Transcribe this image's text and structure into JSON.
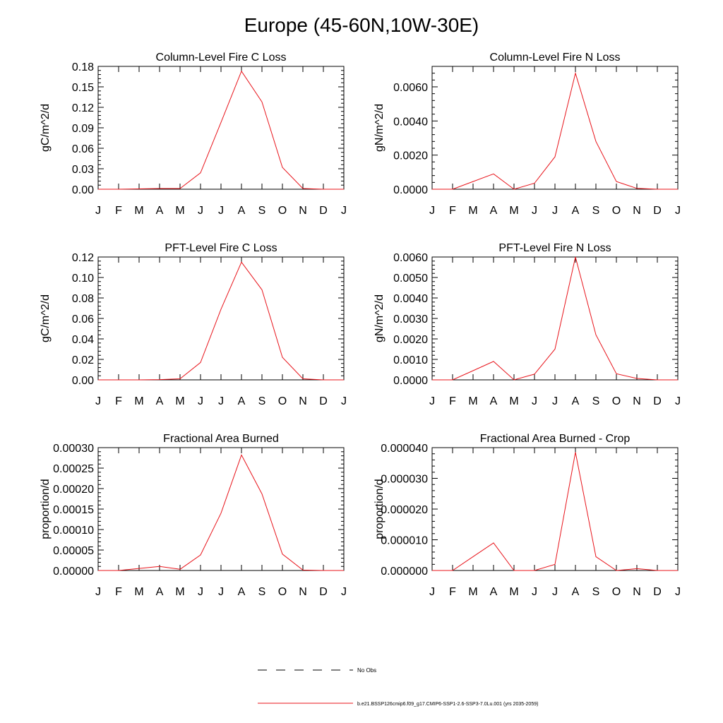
{
  "title": "Europe (45-60N,10W-30E)",
  "months": [
    "J",
    "F",
    "M",
    "A",
    "M",
    "J",
    "J",
    "A",
    "S",
    "O",
    "N",
    "D",
    "J"
  ],
  "series_color": "#e8141b",
  "legend": [
    {
      "label": "No Obs",
      "style": "dashed",
      "color": "#000000"
    },
    {
      "label": "b.e21.BSSP126cmip6.f09_g17.CMIP6-SSP1-2.6-SSP3-7.0Lu.001 (yrs 2035-2059)",
      "style": "solid",
      "color": "#e8141b"
    }
  ],
  "chart_data": [
    {
      "type": "line",
      "title": "Column-Level Fire C Loss",
      "ylabel": "gC/m^2/d",
      "ylim": [
        0,
        0.18
      ],
      "yticks": [
        "0.00",
        "0.03",
        "0.06",
        "0.09",
        "0.12",
        "0.15",
        "0.18"
      ],
      "x": [
        "J",
        "F",
        "M",
        "A",
        "M",
        "J",
        "J",
        "A",
        "S",
        "O",
        "N",
        "D",
        "J"
      ],
      "values": [
        0.0,
        0.0,
        0.0005,
        0.001,
        0.001,
        0.024,
        0.098,
        0.173,
        0.128,
        0.032,
        0.001,
        0.0,
        0.0
      ]
    },
    {
      "type": "line",
      "title": "Column-Level Fire N Loss",
      "ylabel": "gN/m^2/d",
      "ylim": [
        0,
        0.0072
      ],
      "yticks": [
        "0.0000",
        "0.0020",
        "0.0040",
        "0.0060"
      ],
      "x": [
        "J",
        "F",
        "M",
        "A",
        "M",
        "J",
        "J",
        "A",
        "S",
        "O",
        "N",
        "D",
        "J"
      ],
      "values": [
        0.0,
        0.0,
        0.00045,
        0.0009,
        0.0,
        0.00035,
        0.0019,
        0.0068,
        0.0028,
        0.00045,
        5e-05,
        0.0,
        0.0
      ]
    },
    {
      "type": "line",
      "title": "PFT-Level Fire C Loss",
      "ylabel": "gC/m^2/d",
      "ylim": [
        0,
        0.12
      ],
      "yticks": [
        "0.00",
        "0.02",
        "0.04",
        "0.06",
        "0.08",
        "0.10",
        "0.12"
      ],
      "x": [
        "J",
        "F",
        "M",
        "A",
        "M",
        "J",
        "J",
        "A",
        "S",
        "O",
        "N",
        "D",
        "J"
      ],
      "values": [
        0.0,
        0.0,
        0.0,
        0.0003,
        0.001,
        0.017,
        0.069,
        0.115,
        0.088,
        0.022,
        0.001,
        0.0,
        0.0
      ]
    },
    {
      "type": "line",
      "title": "PFT-Level Fire N Loss",
      "ylabel": "gN/m^2/d",
      "ylim": [
        0,
        0.006
      ],
      "yticks": [
        "0.0000",
        "0.0010",
        "0.0020",
        "0.0030",
        "0.0040",
        "0.0050",
        "0.0060"
      ],
      "x": [
        "J",
        "F",
        "M",
        "A",
        "M",
        "J",
        "J",
        "A",
        "S",
        "O",
        "N",
        "D",
        "J"
      ],
      "values": [
        0.0,
        0.0,
        0.00045,
        0.0009,
        0.0,
        0.00028,
        0.0015,
        0.006,
        0.0022,
        0.0003,
        7e-05,
        0.0,
        0.0
      ]
    },
    {
      "type": "line",
      "title": "Fractional Area Burned",
      "ylabel": "proportion/d",
      "ylim": [
        0,
        0.0003
      ],
      "yticks": [
        "0.00000",
        "0.00005",
        "0.00010",
        "0.00015",
        "0.00020",
        "0.00025",
        "0.00030"
      ],
      "x": [
        "J",
        "F",
        "M",
        "A",
        "M",
        "J",
        "J",
        "A",
        "S",
        "O",
        "N",
        "D",
        "J"
      ],
      "values": [
        0.0,
        0.0,
        5e-06,
        1e-05,
        3e-06,
        3.8e-05,
        0.00014,
        0.000282,
        0.000187,
        4e-05,
        1e-06,
        0.0,
        0.0
      ]
    },
    {
      "type": "line",
      "title": "Fractional Area Burned - Crop",
      "ylabel": "proportion/d",
      "ylim": [
        0,
        4e-05
      ],
      "yticks": [
        "0.000000",
        "0.000010",
        "0.000020",
        "0.000030",
        "0.000040"
      ],
      "x": [
        "J",
        "F",
        "M",
        "A",
        "M",
        "J",
        "J",
        "A",
        "S",
        "O",
        "N",
        "D",
        "J"
      ],
      "values": [
        0.0,
        0.0,
        4.5e-06,
        9e-06,
        0.0,
        0.0,
        2e-06,
        3.85e-05,
        4.5e-06,
        0.0,
        6e-07,
        0.0,
        0.0
      ]
    }
  ]
}
